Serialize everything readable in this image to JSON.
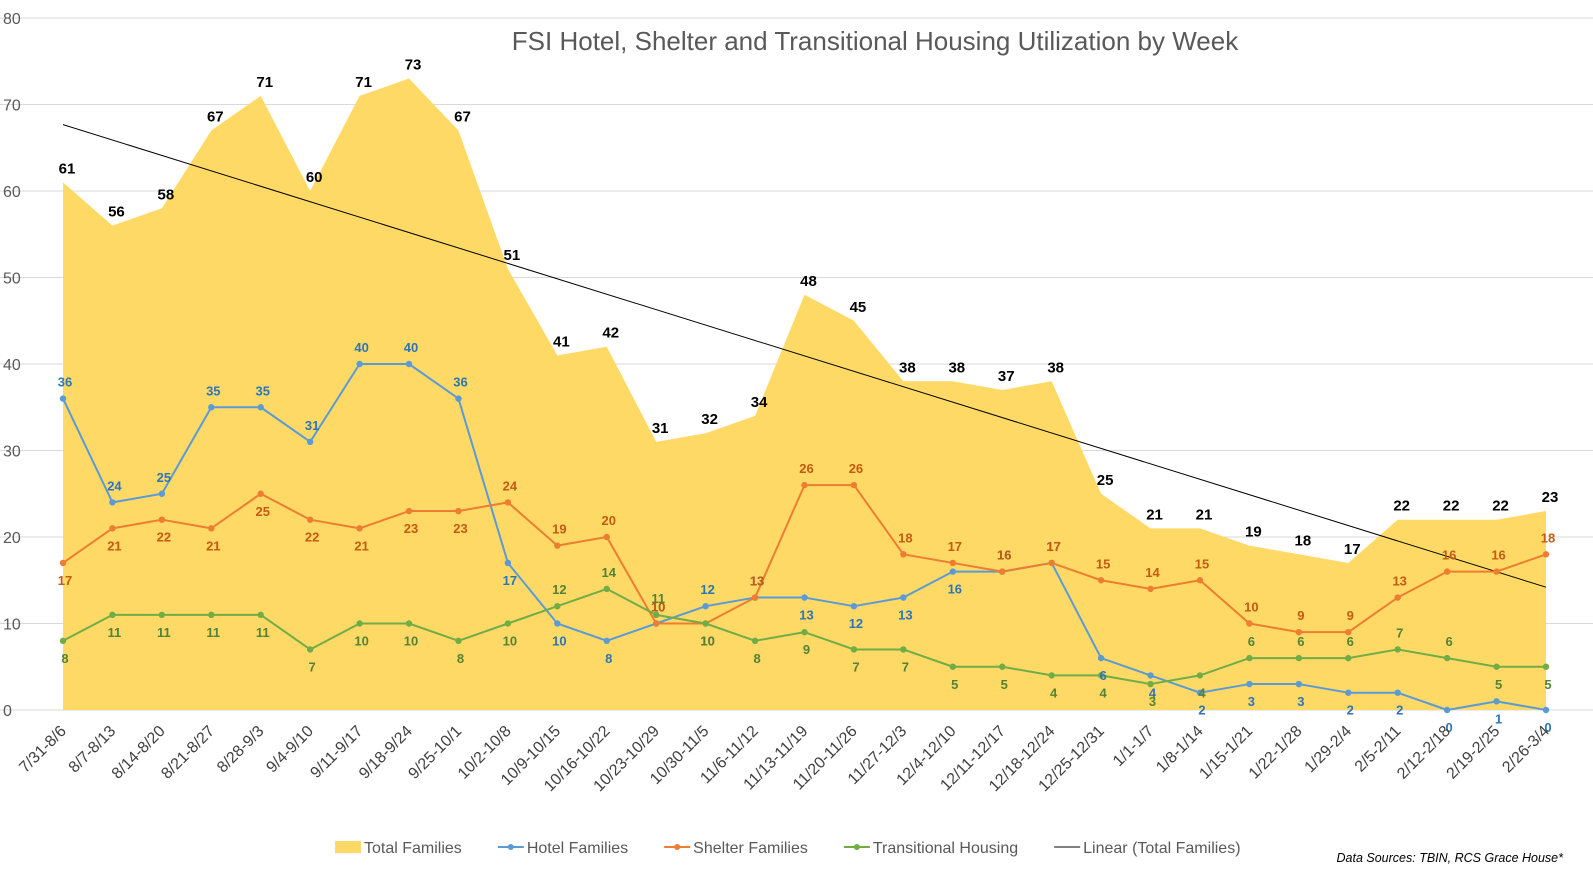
{
  "chart_data": {
    "type": "area",
    "title": "FSI Hotel, Shelter and Transitional Housing Utilization by Week",
    "xlabel": "",
    "ylabel": "",
    "ylim": [
      0,
      80
    ],
    "yticks": [
      0,
      10,
      20,
      30,
      40,
      50,
      60,
      70,
      80
    ],
    "grid": true,
    "legend": "bottom",
    "categories": [
      "7/31-8/6",
      "8/7-8/13",
      "8/14-8/20",
      "8/21-8/27",
      "8/28-9/3",
      "9/4-9/10",
      "9/11-9/17",
      "9/18-9/24",
      "9/25-10/1",
      "10/2-10/8",
      "10/9-10/15",
      "10/16-10/22",
      "10/23-10/29",
      "10/30-11/5",
      "11/6-11/12",
      "11/13-11/19",
      "11/20-11/26",
      "11/27-12/3",
      "12/4-12/10",
      "12/11-12/17",
      "12/18-12/24",
      "12/25-12/31",
      "1/1-1/7",
      "1/8-1/14",
      "1/15-1/21",
      "1/22-1/28",
      "1/29-2/4",
      "2/5-2/11",
      "2/12-2/18",
      "2/19-2/25",
      "2/26-3/4"
    ],
    "series": [
      {
        "name": "Total Families",
        "type": "area",
        "color": "#FFD966",
        "label_color": "#000000",
        "values": [
          61,
          56,
          58,
          67,
          71,
          60,
          71,
          73,
          67,
          51,
          41,
          42,
          31,
          32,
          34,
          48,
          45,
          38,
          38,
          37,
          38,
          25,
          21,
          21,
          19,
          18,
          17,
          22,
          22,
          22,
          23
        ]
      },
      {
        "name": "Hotel Families",
        "type": "line",
        "color": "#5B9BD5",
        "label_color": "#2E75B6",
        "values": [
          36,
          24,
          25,
          35,
          35,
          31,
          40,
          40,
          36,
          17,
          10,
          8,
          10,
          12,
          13,
          13,
          12,
          13,
          16,
          16,
          17,
          6,
          4,
          2,
          3,
          3,
          2,
          2,
          0,
          1,
          0
        ]
      },
      {
        "name": "Shelter Families",
        "type": "line",
        "color": "#ED7D31",
        "label_color": "#C55A11",
        "values": [
          17,
          21,
          22,
          21,
          25,
          22,
          21,
          23,
          23,
          24,
          19,
          20,
          10,
          10,
          13,
          26,
          26,
          18,
          17,
          16,
          17,
          15,
          14,
          15,
          10,
          9,
          9,
          13,
          16,
          16,
          18
        ]
      },
      {
        "name": "Transitional Housing",
        "type": "line",
        "color": "#70AD47",
        "label_color": "#548235",
        "values": [
          8,
          11,
          11,
          11,
          11,
          7,
          10,
          10,
          8,
          10,
          12,
          14,
          11,
          10,
          8,
          9,
          7,
          7,
          5,
          5,
          4,
          4,
          3,
          4,
          6,
          6,
          6,
          7,
          6,
          5,
          5
        ]
      },
      {
        "name": "Linear (Total Families)",
        "type": "trendline",
        "color": "#000000",
        "of": "Total Families"
      }
    ],
    "source_note": "Data Sources: TBIN, RCS Grace House*"
  }
}
